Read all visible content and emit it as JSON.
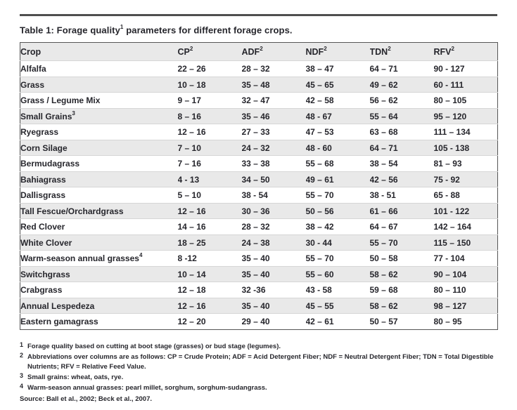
{
  "title": {
    "pre": "Table 1: Forage quality",
    "sup": "1",
    "post": " parameters for different forage crops."
  },
  "table": {
    "columns": [
      {
        "label": "Crop",
        "sup": ""
      },
      {
        "label": "CP",
        "sup": "2"
      },
      {
        "label": "ADF",
        "sup": "2"
      },
      {
        "label": "NDF",
        "sup": "2"
      },
      {
        "label": "TDN",
        "sup": "2"
      },
      {
        "label": "RFV",
        "sup": "2"
      }
    ],
    "rows": [
      {
        "crop": "Alfalfa",
        "sup": "",
        "values": [
          "22 – 26",
          "28 – 32",
          "38 – 47",
          "64 – 71",
          "90 - 127"
        ]
      },
      {
        "crop": "Grass",
        "sup": "",
        "values": [
          "10 – 18",
          "35 – 48",
          "45 – 65",
          "49 – 62",
          "60 - 111"
        ]
      },
      {
        "crop": "Grass / Legume Mix",
        "sup": "",
        "values": [
          "9 – 17",
          "32 – 47",
          "42 – 58",
          "56 – 62",
          "80 – 105"
        ]
      },
      {
        "crop": "Small Grains",
        "sup": "3",
        "values": [
          "8 – 16",
          "35 – 46",
          "48 - 67",
          "55 – 64",
          "95 – 120"
        ]
      },
      {
        "crop": "Ryegrass",
        "sup": "",
        "values": [
          "12 – 16",
          "27 – 33",
          "47 – 53",
          "63 – 68",
          "111 – 134"
        ]
      },
      {
        "crop": "Corn Silage",
        "sup": "",
        "values": [
          "7 – 10",
          "24 – 32",
          "48 - 60",
          "64 – 71",
          "105 - 138"
        ]
      },
      {
        "crop": "Bermudagrass",
        "sup": "",
        "values": [
          "7 – 16",
          "33 – 38",
          "55 – 68",
          "38 – 54",
          "81 – 93"
        ]
      },
      {
        "crop": "Bahiagrass",
        "sup": "",
        "values": [
          "4 - 13",
          "34 – 50",
          "49 – 61",
          "42 – 56",
          "75 - 92"
        ]
      },
      {
        "crop": "Dallisgrass",
        "sup": "",
        "values": [
          "5 – 10",
          "38 - 54",
          "55 – 70",
          "38 - 51",
          "65 - 88"
        ]
      },
      {
        "crop": "Tall Fescue/Orchardgrass",
        "sup": "",
        "values": [
          "12 – 16",
          "30 – 36",
          "50 – 56",
          "61 – 66",
          "101 - 122"
        ]
      },
      {
        "crop": "Red Clover",
        "sup": "",
        "values": [
          "14 – 16",
          "28 – 32",
          "38 – 42",
          "64 – 67",
          "142 – 164"
        ]
      },
      {
        "crop": "White Clover",
        "sup": "",
        "values": [
          "18 – 25",
          "24 – 38",
          "30 - 44",
          "55 – 70",
          "115 – 150"
        ]
      },
      {
        "crop": "Warm-season annual grasses",
        "sup": "4",
        "values": [
          "8 -12",
          "35 – 40",
          "55 – 70",
          "50 – 58",
          "77 - 104"
        ]
      },
      {
        "crop": "Switchgrass",
        "sup": "",
        "values": [
          "10 – 14",
          "35 – 40",
          "55 – 60",
          "58 – 62",
          "90 – 104"
        ]
      },
      {
        "crop": "Crabgrass",
        "sup": "",
        "values": [
          "12 – 18",
          "32 -36",
          "43 - 58",
          "59 – 68",
          "80 – 110"
        ]
      },
      {
        "crop": "Annual Lespedeza",
        "sup": "",
        "values": [
          "12 – 16",
          "35 – 40",
          "45 – 55",
          "58 – 62",
          "98 – 127"
        ]
      },
      {
        "crop": "Eastern gamagrass",
        "sup": "",
        "values": [
          "12 – 20",
          "29 – 40",
          "42 – 61",
          "50 – 57",
          "80 – 95"
        ]
      }
    ]
  },
  "footnotes": [
    {
      "marker": "1",
      "text": "Forage quality based on cutting at boot stage (grasses) or bud stage (legumes)."
    },
    {
      "marker": "2",
      "text": "Abbreviations over columns are as follows: CP = Crude Protein; ADF = Acid Detergent Fiber; NDF = Neutral Detergent Fiber; TDN = Total Digestible Nutrients; RFV = Relative Feed Value."
    },
    {
      "marker": "3",
      "text": "Small grains: wheat, oats, rye."
    },
    {
      "marker": "4",
      "text": "Warm-season annual grasses: pearl millet, sorghum, sorghum-sudangrass."
    }
  ],
  "source_line": "Source: Ball et al., 2002; Beck et al., 2007.",
  "colors": {
    "row_alt_bg": "#e9e9e9",
    "header_bg": "#e9e9e9",
    "text": "#26262c",
    "rule": "#4f4f4f",
    "table_border": "#565656"
  }
}
